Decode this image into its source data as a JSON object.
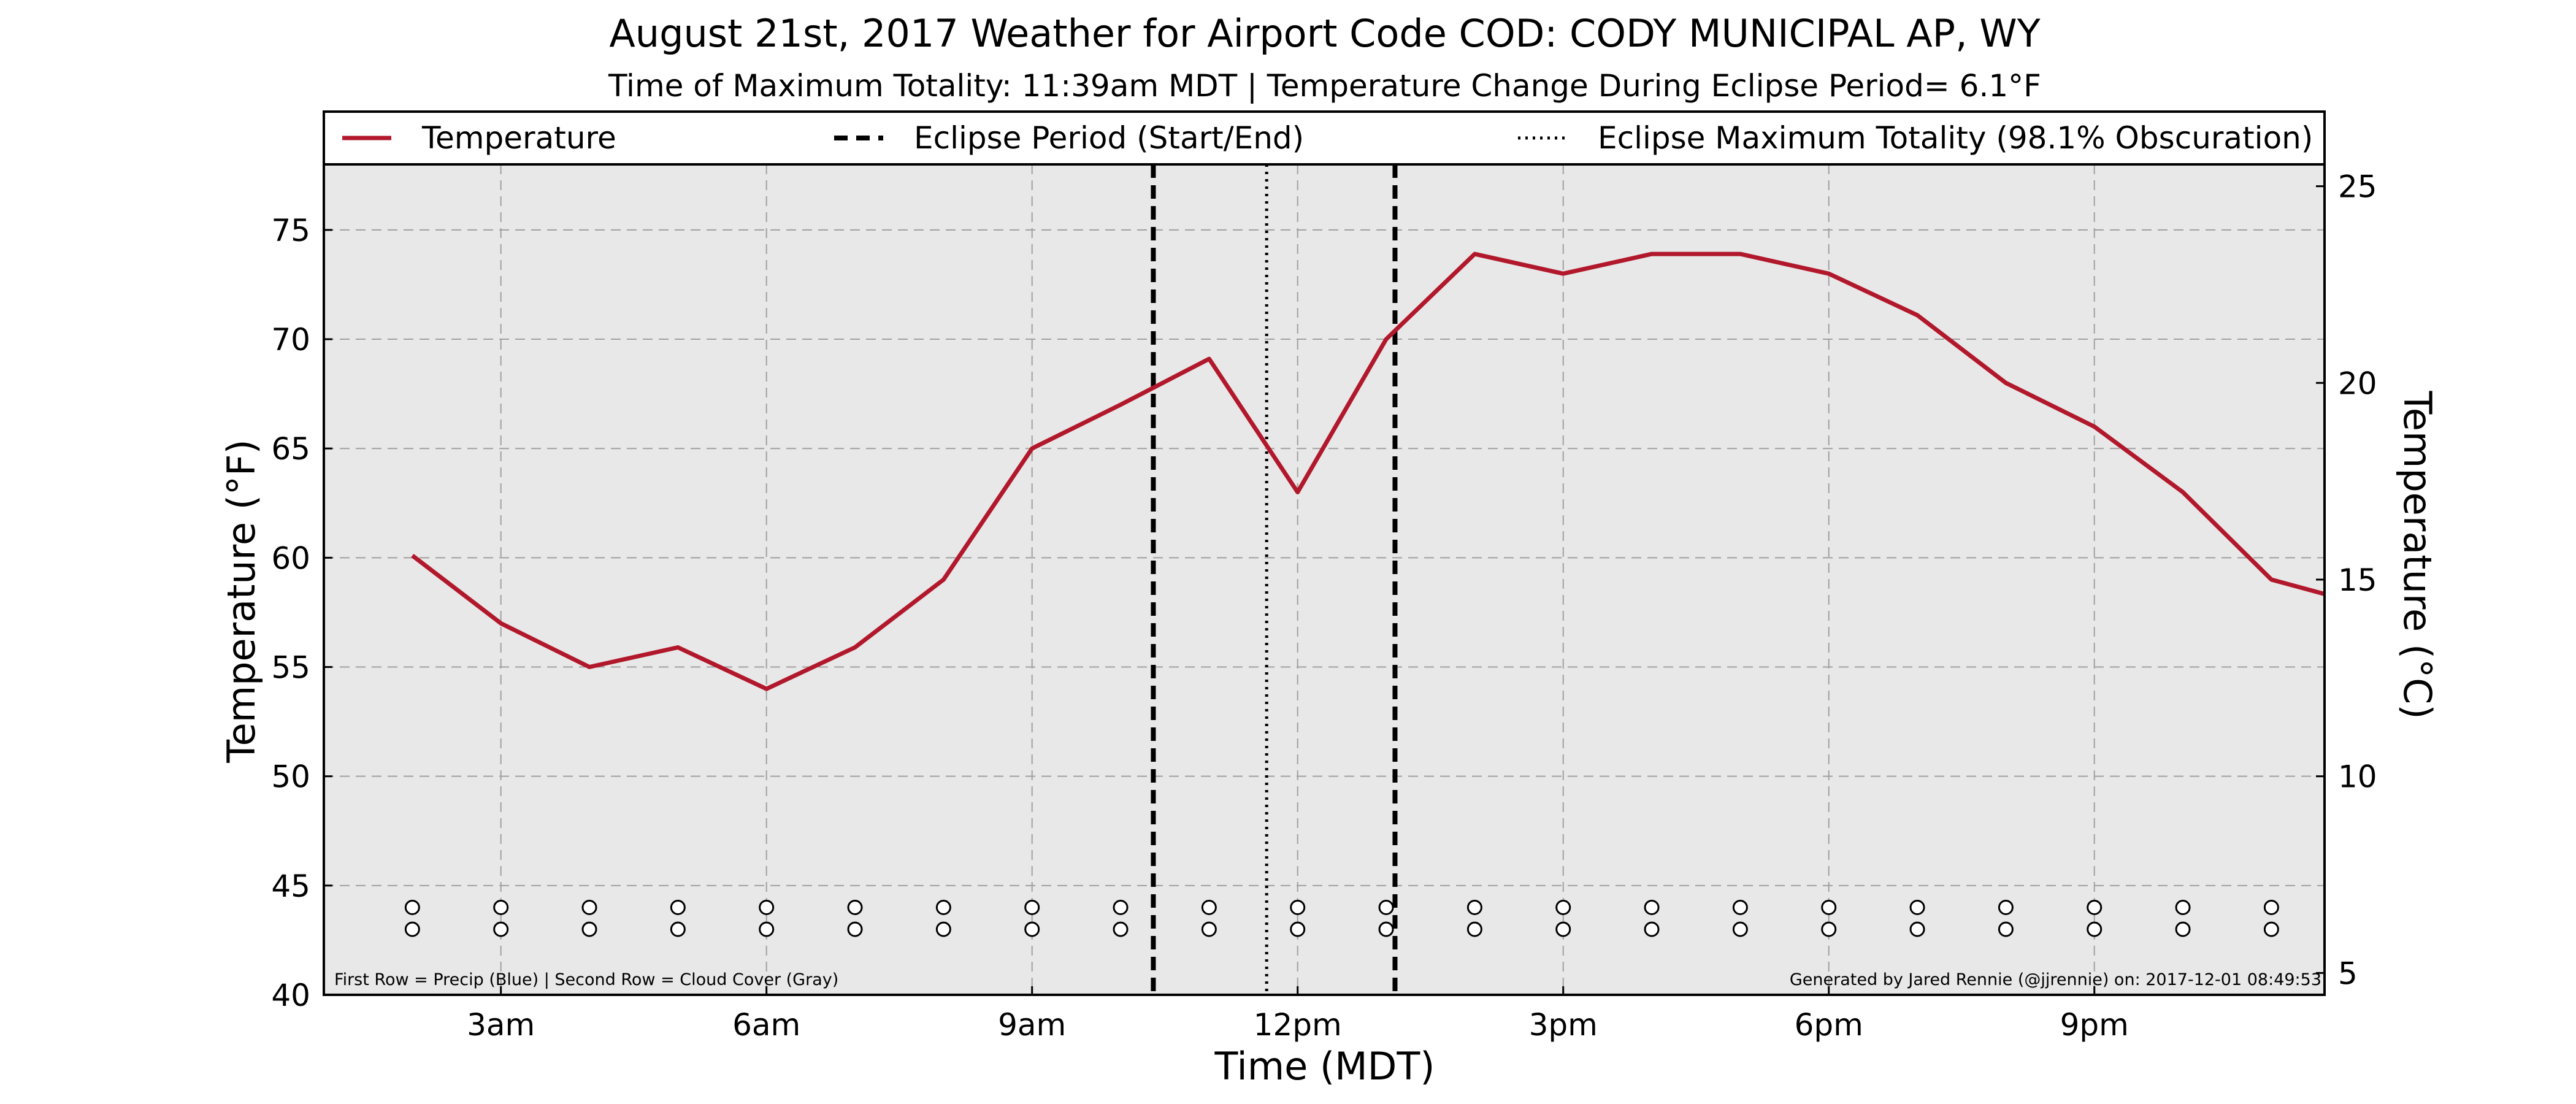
{
  "chart_data": {
    "type": "line",
    "title": "August 21st, 2017 Weather for Airport Code COD: CODY MUNICIPAL AP, WY",
    "subtitle": "Time of Maximum Totality: 11:39am MDT | Temperature Change During Eclipse Period= 6.1°F",
    "xlabel": "Time (MDT)",
    "ylabel": "Temperature (°F)",
    "ylabel_right": "Temperature (°C)",
    "xlim": [
      1,
      23.6
    ],
    "ylim": [
      40,
      78
    ],
    "x_ticks": [
      {
        "x": 3,
        "label": "3am"
      },
      {
        "x": 6,
        "label": "6am"
      },
      {
        "x": 9,
        "label": "9am"
      },
      {
        "x": 12,
        "label": "12pm"
      },
      {
        "x": 15,
        "label": "3pm"
      },
      {
        "x": 18,
        "label": "6pm"
      },
      {
        "x": 21,
        "label": "9pm"
      }
    ],
    "y_ticks": [
      40,
      45,
      50,
      55,
      60,
      65,
      70,
      75
    ],
    "y_ticks_right": [
      5,
      10,
      15,
      20,
      25
    ],
    "grid": true,
    "legend_placement": "top",
    "legend": [
      {
        "label": "Temperature",
        "style": "solid"
      },
      {
        "label": "Eclipse Period (Start/End)",
        "style": "dashed"
      },
      {
        "label": "Eclipse Maximum Totality (98.1% Obscuration)",
        "style": "dotted"
      }
    ],
    "series": [
      {
        "name": "Temperature",
        "color": "#b2182b",
        "x": [
          2,
          3,
          4,
          5,
          6,
          7,
          8,
          9,
          10,
          11,
          12,
          13,
          14,
          15,
          16,
          17,
          18,
          19,
          20,
          21,
          22,
          23,
          24
        ],
        "y": [
          60.1,
          57,
          55,
          55.9,
          54,
          55.9,
          59,
          65,
          67,
          69.1,
          63,
          70,
          73.9,
          73,
          73.9,
          73.9,
          73,
          71.1,
          68,
          66,
          63,
          59,
          57.9
        ]
      }
    ],
    "eclipse_lines": [
      {
        "x": 10.37,
        "style": "dashed",
        "label": "Eclipse Period (Start/End)"
      },
      {
        "x": 11.65,
        "style": "dotted",
        "label": "Eclipse Maximum Totality (98.1% Obscuration)"
      },
      {
        "x": 13.1,
        "style": "dashed",
        "label": "Eclipse Period (Start/End)"
      }
    ],
    "precip_cloud_markers": {
      "x": [
        2,
        3,
        4,
        5,
        6,
        7,
        8,
        9,
        10,
        11,
        12,
        13,
        14,
        15,
        16,
        17,
        18,
        19,
        20,
        21,
        22,
        23,
        24
      ],
      "row1_y": 44,
      "row2_y": 43,
      "color": "#000000"
    },
    "footnote_left": "First Row = Precip (Blue) | Second Row = Cloud Cover (Gray)",
    "footnote_right": "Generated by Jared Rennie (@jjrennie) on: 2017-12-01 08:49:53",
    "colors": {
      "plot_bg": "#e8e8e8",
      "line": "#b2182b",
      "grid": "#a0a0a0"
    }
  }
}
